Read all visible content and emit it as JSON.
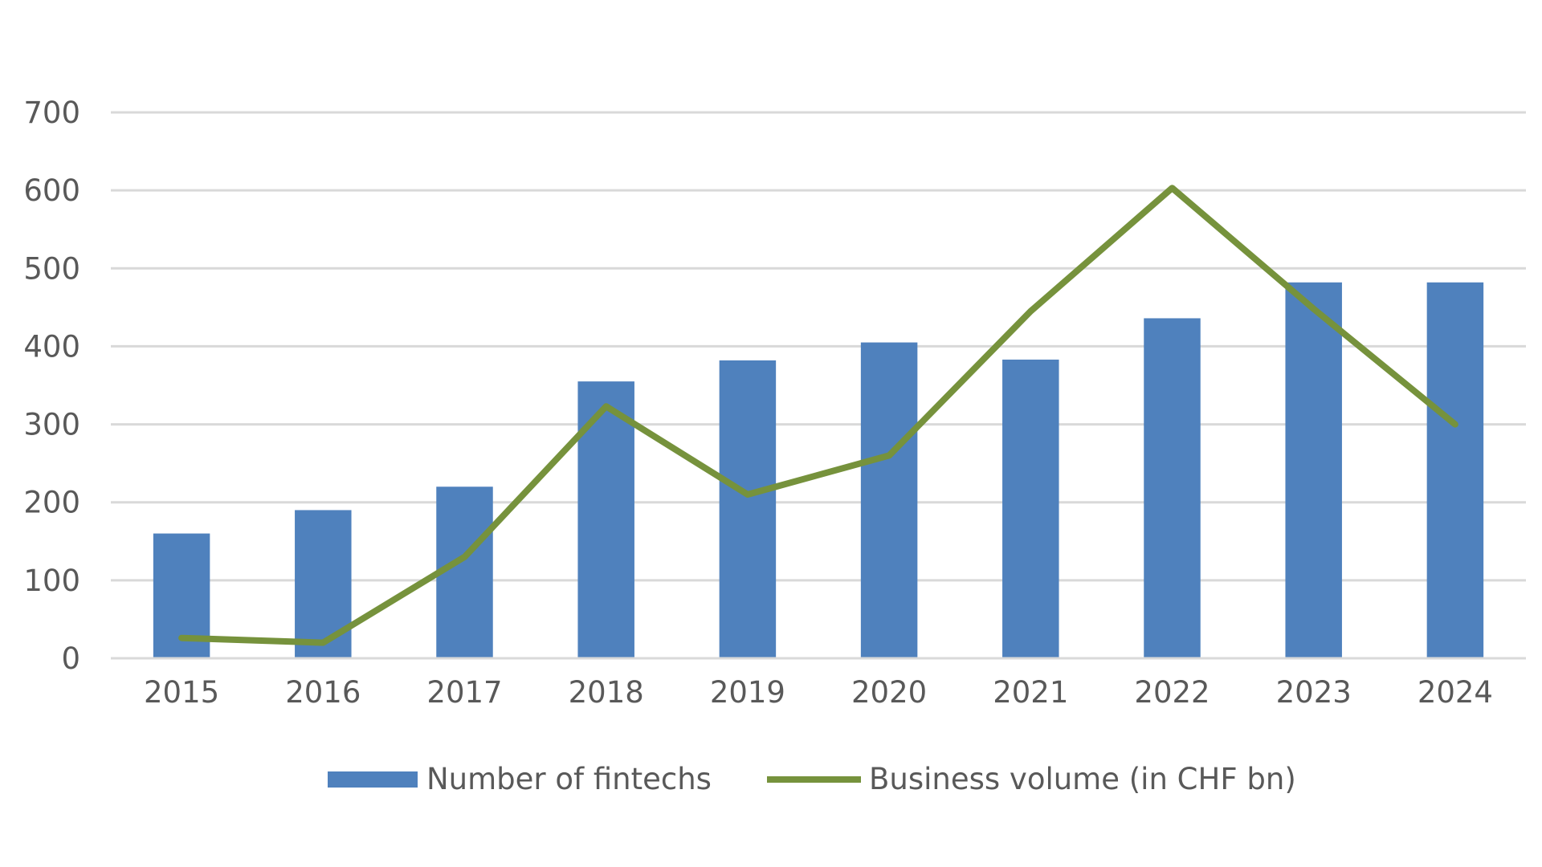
{
  "chart_data": {
    "type": "bar",
    "title": "",
    "xlabel": "",
    "ylabel": "",
    "categories": [
      "2015",
      "2016",
      "2017",
      "2018",
      "2019",
      "2020",
      "2021",
      "2022",
      "2023",
      "2024"
    ],
    "ylim": [
      0,
      700
    ],
    "yticks": [
      0,
      100,
      200,
      300,
      400,
      500,
      600,
      700
    ],
    "grid": true,
    "legend_position": "bottom",
    "series": [
      {
        "name": "Number of fintechs",
        "type": "bar",
        "color": "#4F81BD",
        "values": [
          160,
          190,
          220,
          355,
          382,
          405,
          383,
          436,
          482,
          482
        ]
      },
      {
        "name": "Business volume (in CHF bn)",
        "type": "line",
        "color": "#76923C",
        "values": [
          26,
          20,
          130,
          323,
          210,
          260,
          445,
          603,
          448,
          300
        ]
      }
    ]
  }
}
